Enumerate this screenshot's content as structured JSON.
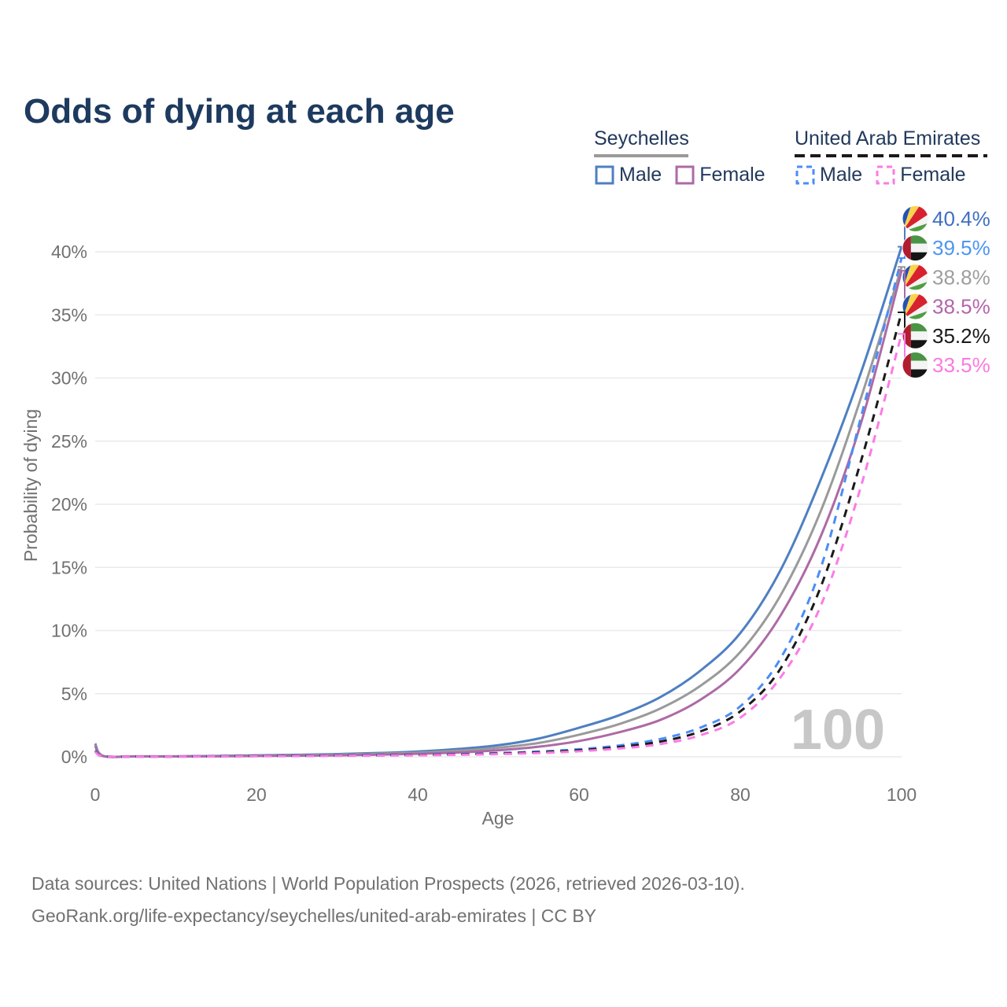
{
  "title": "Odds of dying at each age",
  "watermark": "100",
  "legend": {
    "groups": [
      {
        "country": "Seychelles",
        "line_style": "solid",
        "line_color": "#9a9a9a",
        "items": [
          {
            "label": "Male",
            "series": "sc_male"
          },
          {
            "label": "Female",
            "series": "sc_female"
          }
        ]
      },
      {
        "country": "United Arab Emirates",
        "line_style": "dashed",
        "line_color": "#1a1a1a",
        "items": [
          {
            "label": "Male",
            "series": "uae_male"
          },
          {
            "label": "Female",
            "series": "uae_female"
          }
        ]
      }
    ]
  },
  "chart_data": {
    "type": "line",
    "title": "Odds of dying at each age",
    "xlabel": "Age",
    "ylabel": "Probability of dying",
    "xlim": [
      0,
      100
    ],
    "ylim": [
      0,
      42.5
    ],
    "grid": true,
    "x_ticks": [
      0,
      20,
      40,
      60,
      80,
      100
    ],
    "y_ticks": [
      {
        "v": 0,
        "label": "0%"
      },
      {
        "v": 5,
        "label": "5%"
      },
      {
        "v": 10,
        "label": "10%"
      },
      {
        "v": 15,
        "label": "15%"
      },
      {
        "v": 20,
        "label": "20%"
      },
      {
        "v": 25,
        "label": "25%"
      },
      {
        "v": 30,
        "label": "30%"
      },
      {
        "v": 35,
        "label": "35%"
      },
      {
        "v": 40,
        "label": "40%"
      }
    ],
    "ages": [
      0,
      1,
      5,
      10,
      15,
      20,
      25,
      30,
      35,
      40,
      45,
      50,
      55,
      60,
      65,
      70,
      75,
      80,
      85,
      90,
      95,
      100
    ],
    "series": [
      {
        "id": "sc_male",
        "name": "Seychelles — Male",
        "country": "seychelles",
        "style": "solid",
        "color": "#4e7fc1",
        "label_color": "#3f6fc1",
        "end_value": 40.4,
        "end_label": "40.4%",
        "label_row": 0,
        "values": [
          1.05,
          0.07,
          0.04,
          0.04,
          0.07,
          0.12,
          0.16,
          0.22,
          0.3,
          0.42,
          0.62,
          0.92,
          1.45,
          2.3,
          3.3,
          4.7,
          6.8,
          9.8,
          14.8,
          22.0,
          30.5,
          40.4
        ]
      },
      {
        "id": "sc_both",
        "name": "Seychelles — Both sexes",
        "country": "seychelles",
        "style": "solid",
        "color": "#9a9a9a",
        "label_color": "#9e9e9e",
        "end_value": 38.8,
        "end_label": "38.8%",
        "label_row": 2,
        "values": [
          0.95,
          0.06,
          0.03,
          0.03,
          0.06,
          0.1,
          0.13,
          0.18,
          0.24,
          0.33,
          0.48,
          0.72,
          1.1,
          1.75,
          2.6,
          3.8,
          5.6,
          8.3,
          12.8,
          19.5,
          28.5,
          38.8
        ]
      },
      {
        "id": "sc_female",
        "name": "Seychelles — Female",
        "country": "seychelles",
        "style": "solid",
        "color": "#ad6aa6",
        "label_color": "#b464ad",
        "end_value": 38.5,
        "end_label": "38.5%",
        "label_row": 3,
        "values": [
          0.85,
          0.06,
          0.03,
          0.03,
          0.04,
          0.07,
          0.09,
          0.12,
          0.17,
          0.24,
          0.34,
          0.52,
          0.8,
          1.25,
          1.95,
          2.9,
          4.5,
          7.0,
          11.2,
          17.5,
          26.5,
          38.5
        ]
      },
      {
        "id": "uae_male",
        "name": "United Arab Emirates — Male",
        "country": "uae",
        "style": "dashed",
        "color": "#4b8df5",
        "label_color": "#4e95f0",
        "end_value": 39.5,
        "end_label": "39.5%",
        "label_row": 1,
        "values": [
          0.5,
          0.05,
          0.03,
          0.03,
          0.05,
          0.08,
          0.1,
          0.12,
          0.14,
          0.17,
          0.22,
          0.3,
          0.42,
          0.6,
          0.9,
          1.4,
          2.3,
          4.0,
          7.8,
          15.0,
          27.0,
          39.5
        ]
      },
      {
        "id": "uae_both",
        "name": "United Arab Emirates — Both sexes",
        "country": "uae",
        "style": "dashed",
        "color": "#1a1a1a",
        "label_color": "#1a1a1a",
        "end_value": 35.2,
        "end_label": "35.2%",
        "label_row": 4,
        "values": [
          0.45,
          0.04,
          0.02,
          0.02,
          0.04,
          0.06,
          0.08,
          0.1,
          0.12,
          0.15,
          0.19,
          0.26,
          0.36,
          0.52,
          0.78,
          1.2,
          2.0,
          3.6,
          7.0,
          13.5,
          23.5,
          35.2
        ]
      },
      {
        "id": "uae_female",
        "name": "United Arab Emirates — Female",
        "country": "uae",
        "style": "dashed",
        "color": "#fb7be6",
        "label_color": "#fb7ae1",
        "end_value": 33.5,
        "end_label": "33.5%",
        "label_row": 5,
        "values": [
          0.4,
          0.04,
          0.02,
          0.02,
          0.03,
          0.05,
          0.06,
          0.08,
          0.1,
          0.12,
          0.16,
          0.22,
          0.3,
          0.44,
          0.66,
          1.0,
          1.7,
          3.1,
          6.3,
          12.0,
          21.5,
          33.5
        ]
      }
    ]
  },
  "footer": {
    "line1": "Data sources: United Nations | World Population Prospects (2026, retrieved 2026-03-10).",
    "line2": "GeoRank.org/life-expectancy/seychelles/united-arab-emirates | CC BY"
  }
}
